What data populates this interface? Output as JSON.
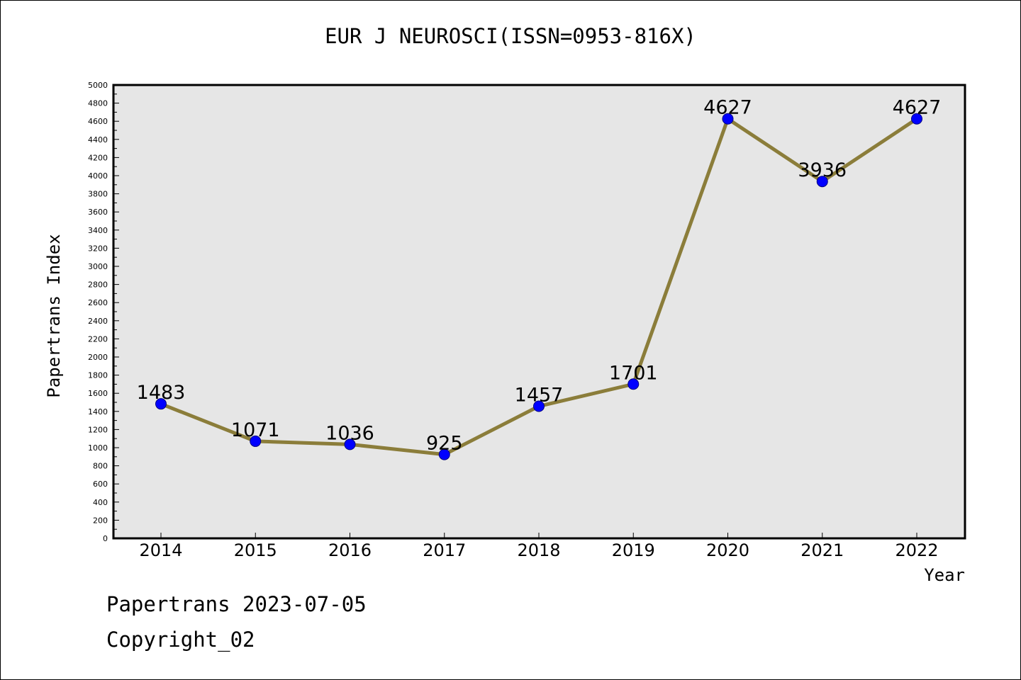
{
  "title": "EUR J NEUROSCI(ISSN=0953-816X)",
  "footer": {
    "date_line": "Papertrans 2023-07-05",
    "copyright_line": "Copyright_02"
  },
  "chart_data": {
    "type": "line",
    "title": "EUR J NEUROSCI(ISSN=0953-816X)",
    "xlabel": "Year",
    "ylabel": "Papertrans Index",
    "categories": [
      "2014",
      "2015",
      "2016",
      "2017",
      "2018",
      "2019",
      "2020",
      "2021",
      "2022"
    ],
    "values": [
      1483,
      1071,
      1036,
      925,
      1457,
      1701,
      4627,
      3936,
      4627
    ],
    "data_labels": [
      "1483",
      "1071",
      "1036",
      "925",
      "1457",
      "1701",
      "4627",
      "3936",
      "4627"
    ],
    "ylim": [
      0,
      5000
    ],
    "yticks": [
      0,
      200,
      400,
      600,
      800,
      1000,
      1200,
      1400,
      1600,
      1800,
      2000,
      2200,
      2400,
      2600,
      2800,
      3000,
      3200,
      3400,
      3600,
      3800,
      4000,
      4200,
      4400,
      4600,
      4800,
      5000
    ],
    "grid": false,
    "legend": "none",
    "colors": {
      "line": "#8B7D3A",
      "marker_fill": "#0000FF",
      "marker_edge": "#000080",
      "plot_background": "#E6E6E6",
      "axes": "#000000"
    }
  }
}
